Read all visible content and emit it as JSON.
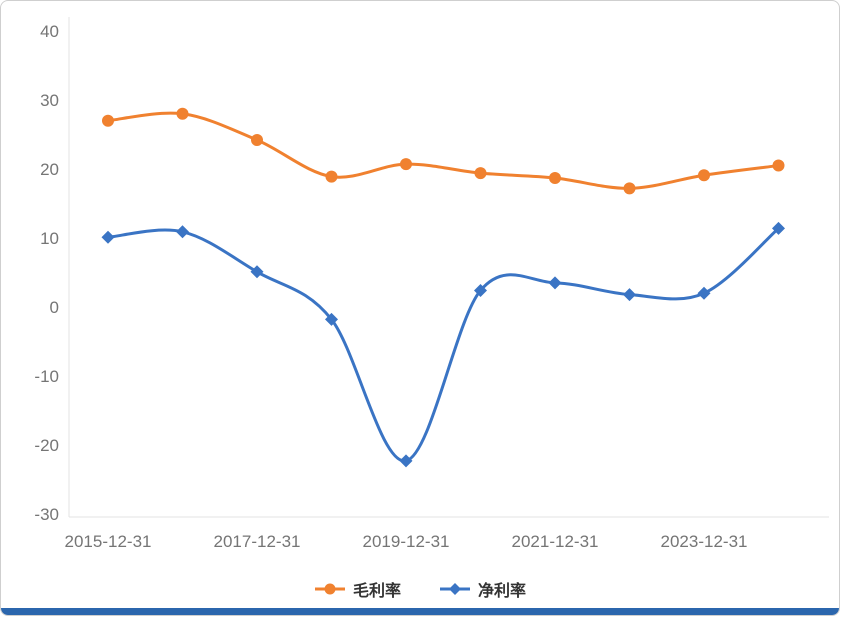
{
  "chart_data": {
    "type": "line",
    "title": "",
    "x": [
      "2015-12-31",
      "2016-12-31",
      "2017-12-31",
      "2018-12-31",
      "2019-12-31",
      "2020-12-31",
      "2021-12-31",
      "2022-12-31",
      "2023-12-31",
      "2024-12-31"
    ],
    "x_tick_indices": [
      0,
      2,
      4,
      6,
      8
    ],
    "x_tick_labels": [
      "2015-12-31",
      "2017-12-31",
      "2019-12-31",
      "2021-12-31",
      "2023-12-31"
    ],
    "y_ticks": [
      40,
      30,
      20,
      10,
      0,
      -10,
      -20,
      -30
    ],
    "ylim": [
      -30,
      40
    ],
    "grid": false,
    "legend_position": "bottom",
    "smooth": true,
    "series": [
      {
        "name": "毛利率",
        "marker": "circle",
        "color": "#f0812f",
        "values": [
          27.0,
          28.0,
          24.2,
          18.9,
          20.7,
          19.4,
          18.7,
          17.2,
          19.1,
          20.5
        ]
      },
      {
        "name": "净利率",
        "marker": "diamond",
        "color": "#3a74c4",
        "values": [
          10.1,
          10.9,
          5.1,
          -1.8,
          -22.3,
          2.4,
          3.5,
          1.8,
          2.0,
          11.4
        ]
      }
    ]
  },
  "colors": {
    "axis_line": "#e3e3e3",
    "tick_label": "#757575",
    "legend_text": "#333333",
    "bottom_bar": "#2b66ad",
    "card_border": "#cfcfcf"
  }
}
